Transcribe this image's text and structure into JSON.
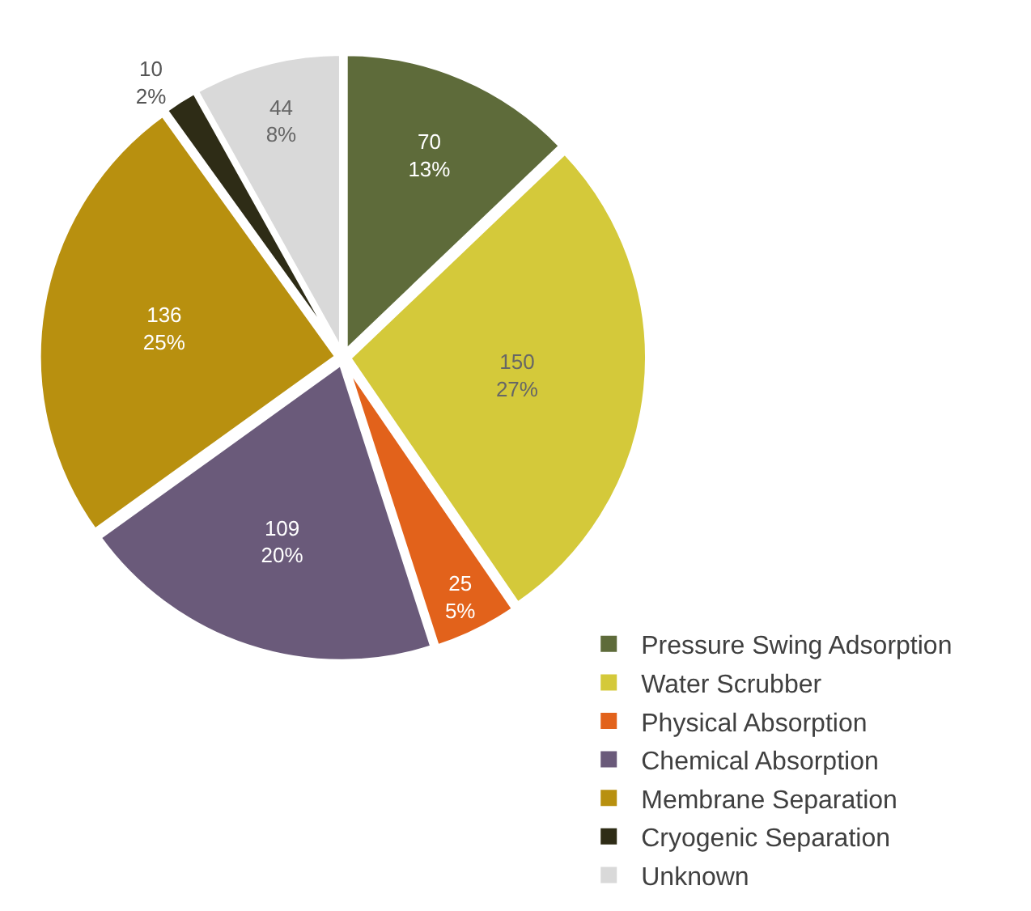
{
  "chart_data": {
    "type": "pie",
    "categories": [
      "Pressure Swing Adsorption",
      "Water Scrubber",
      "Physical Absorption",
      "Chemical Absorption",
      "Membrane Separation",
      "Cryogenic Separation",
      "Unknown"
    ],
    "values": [
      70,
      150,
      25,
      109,
      136,
      10,
      44
    ],
    "value_labels": [
      "70\n13%",
      "150\n27%",
      "25\n5%",
      "109\n20%",
      "136\n25%",
      "10\n2%",
      "44\n8%"
    ],
    "colors": [
      "#5e6b3a",
      "#d4c93a",
      "#e2621b",
      "#6a5a7a",
      "#b8900f",
      "#2e2c16",
      "#d9d9d9"
    ],
    "legend": "bottom right"
  }
}
